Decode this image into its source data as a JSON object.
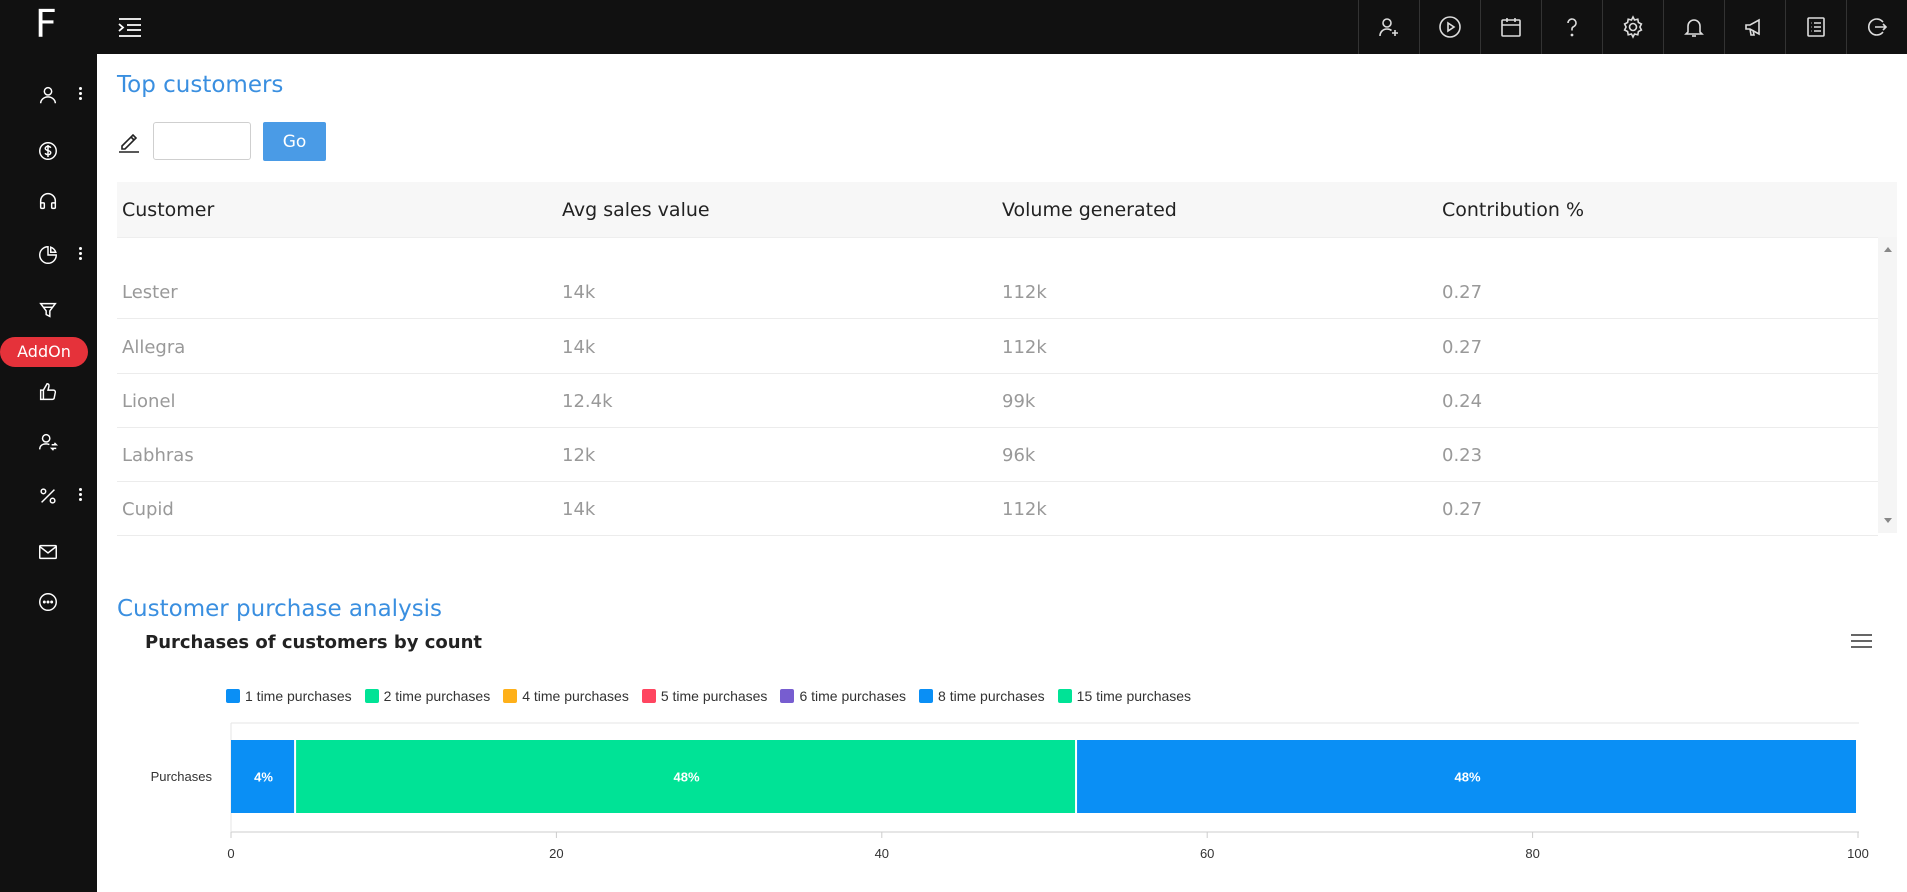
{
  "brand": {
    "logo": "F"
  },
  "sidebar": {
    "items": [
      {
        "name": "user-icon",
        "has_menu": true
      },
      {
        "name": "dollar-icon",
        "has_menu": false
      },
      {
        "name": "headphones-icon",
        "has_menu": false
      },
      {
        "name": "pie-chart-icon",
        "has_menu": true
      },
      {
        "name": "filter-icon",
        "has_menu": false
      },
      {
        "name": "thumbs-up-icon",
        "has_menu": false
      },
      {
        "name": "user-switch-icon",
        "has_menu": false
      },
      {
        "name": "percent-icon",
        "has_menu": true
      },
      {
        "name": "mail-icon",
        "has_menu": false
      },
      {
        "name": "chat-icon",
        "has_menu": false
      }
    ],
    "addon_label": "AddOn"
  },
  "topbar": {
    "icons": [
      "add-user-icon",
      "play-icon",
      "calendar-icon",
      "help-icon",
      "settings-icon",
      "bell-icon",
      "megaphone-icon",
      "list-icon",
      "logout-icon"
    ]
  },
  "top_customers": {
    "title": "Top customers",
    "go_label": "Go",
    "input_value": "",
    "columns": [
      "Customer",
      "Avg sales value",
      "Volume generated",
      "Contribution %"
    ],
    "rows": [
      [
        "Lester",
        "14k",
        "112k",
        "0.27"
      ],
      [
        "Allegra",
        "14k",
        "112k",
        "0.27"
      ],
      [
        "Lionel",
        "12.4k",
        "99k",
        "0.24"
      ],
      [
        "Labhras",
        "12k",
        "96k",
        "0.23"
      ],
      [
        "Cupid",
        "14k",
        "112k",
        "0.27"
      ]
    ]
  },
  "analysis": {
    "title": "Customer purchase analysis"
  },
  "chart_data": {
    "type": "bar",
    "orientation": "horizontal",
    "stacked": true,
    "title": "Purchases of customers by count",
    "categories": [
      "Purchases"
    ],
    "series": [
      {
        "name": "1 time purchases",
        "values": [
          4
        ],
        "label": "4%",
        "color": "#0a8ff5"
      },
      {
        "name": "2 time purchases",
        "values": [
          48
        ],
        "label": "48%",
        "color": "#00e396"
      },
      {
        "name": "4 time purchases",
        "values": [
          0
        ],
        "label": "",
        "color": "#feb019"
      },
      {
        "name": "5 time purchases",
        "values": [
          0
        ],
        "label": "",
        "color": "#ff4560"
      },
      {
        "name": "6 time purchases",
        "values": [
          0
        ],
        "label": "",
        "color": "#775dd0"
      },
      {
        "name": "8 time purchases",
        "values": [
          48
        ],
        "label": "48%",
        "color": "#0a8ff5"
      },
      {
        "name": "15 time purchases",
        "values": [
          0
        ],
        "label": "",
        "color": "#00e396"
      }
    ],
    "xlim": [
      0,
      100
    ],
    "xticks": [
      "0",
      "20",
      "40",
      "60",
      "80",
      "100"
    ],
    "legend_position": "top"
  }
}
